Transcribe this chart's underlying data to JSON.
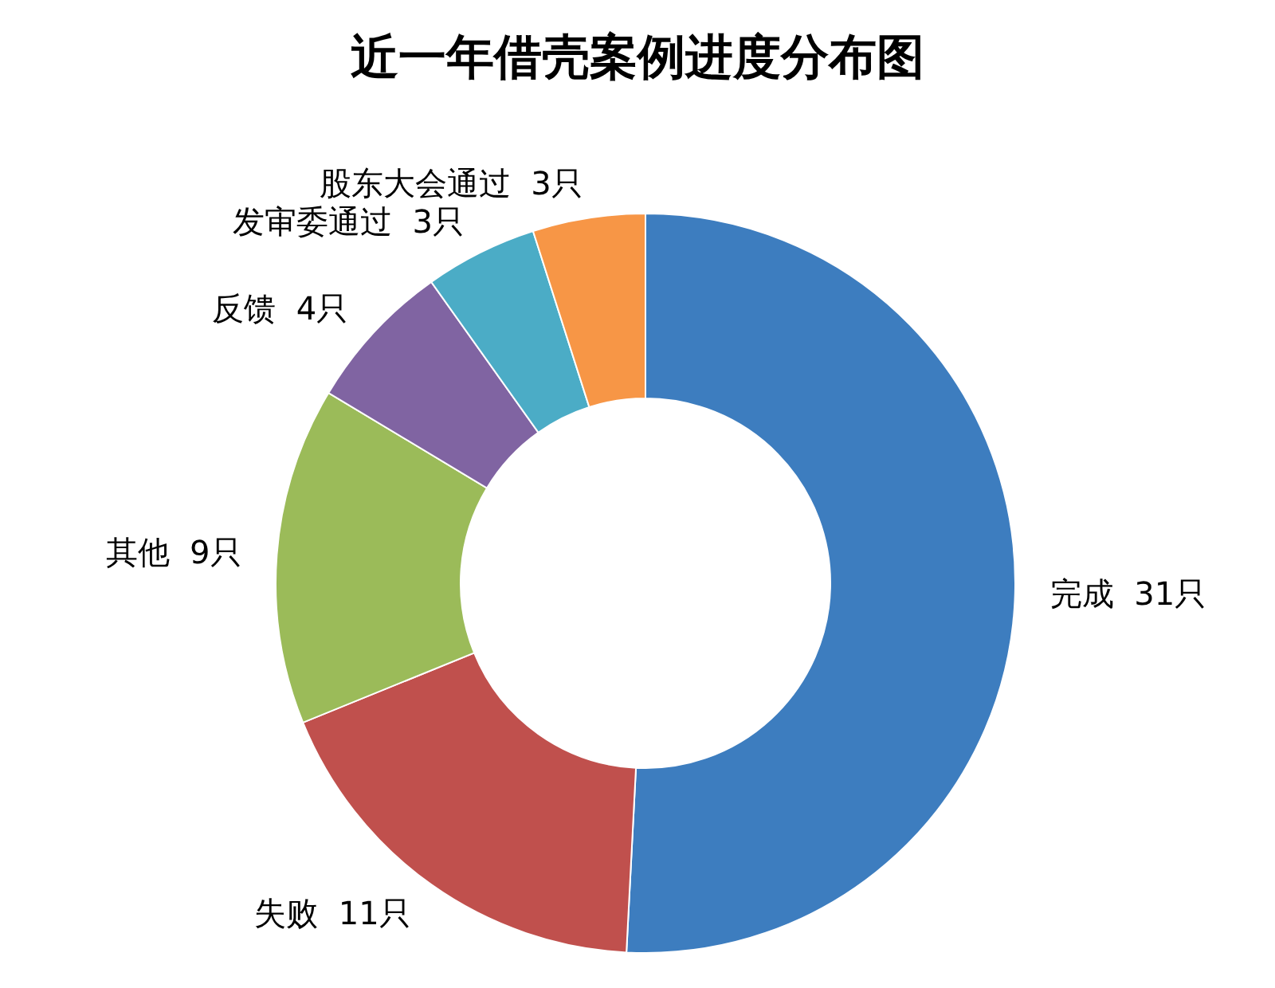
{
  "chart_data": {
    "type": "donut",
    "title": "近一年借壳案例进度分布图",
    "categories": [
      "完成",
      "失败",
      "其他",
      "反馈",
      "发审委通过",
      "股东大会通过"
    ],
    "values": [
      31,
      11,
      9,
      4,
      3,
      3
    ],
    "value_labels": [
      "31只",
      "11只",
      "9只",
      "4只",
      "3只",
      "3只"
    ],
    "colors": [
      "#3d7dbf",
      "#c0504d",
      "#9bbb59",
      "#8064a2",
      "#4bacc6",
      "#f79646"
    ],
    "legend": false
  }
}
